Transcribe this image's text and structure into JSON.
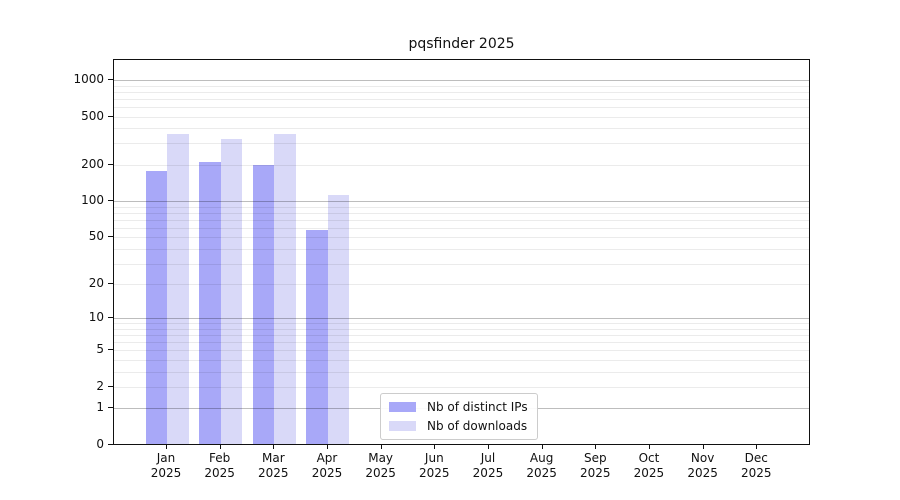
{
  "chart_data": {
    "type": "bar",
    "title": "pqsfinder 2025",
    "categories": [
      "Jan 2025",
      "Feb 2025",
      "Mar 2025",
      "Apr 2025",
      "May 2025",
      "Jun 2025",
      "Jul 2025",
      "Aug 2025",
      "Sep 2025",
      "Oct 2025",
      "Nov 2025",
      "Dec 2025"
    ],
    "series": [
      {
        "name": "Nb of distinct IPs",
        "color": "#a8a8f8",
        "values": [
          176,
          209,
          194,
          56,
          0,
          0,
          0,
          0,
          0,
          0,
          0,
          0
        ]
      },
      {
        "name": "Nb of downloads",
        "color": "#d9d9f8",
        "values": [
          351,
          323,
          353,
          110,
          0,
          0,
          0,
          0,
          0,
          0,
          0,
          0
        ]
      },
      {
        "note": "values for May-Dec 2025 are zero (no bars drawn)"
      }
    ],
    "xlabel": "",
    "ylabel": "",
    "yscale": "log1p",
    "ylim": [
      0,
      1460
    ],
    "y_ticks": [
      0,
      1,
      2,
      5,
      10,
      20,
      50,
      100,
      200,
      500,
      1000
    ],
    "grid": {
      "orientation": "horizontal",
      "major_lines_at": [
        1,
        10,
        100,
        1000
      ],
      "minor_lines_at_multiples": [
        2,
        3,
        4,
        5,
        6,
        7,
        8,
        9
      ],
      "minor_decades": [
        1,
        10,
        100
      ],
      "major_color": "#bdbdbd",
      "minor_color": "#ebebeb",
      "drawn_over_bars": true
    },
    "legend": {
      "position": "inside axes, bottom center-left",
      "entries": [
        "Nb of distinct IPs",
        "Nb of downloads"
      ]
    },
    "colors": {
      "distinct_ips_bar": "#a8a8f8",
      "downloads_bar": "#d9d9f8",
      "axis_spine": "#111111",
      "text": "#111111",
      "background": "#ffffff"
    }
  }
}
